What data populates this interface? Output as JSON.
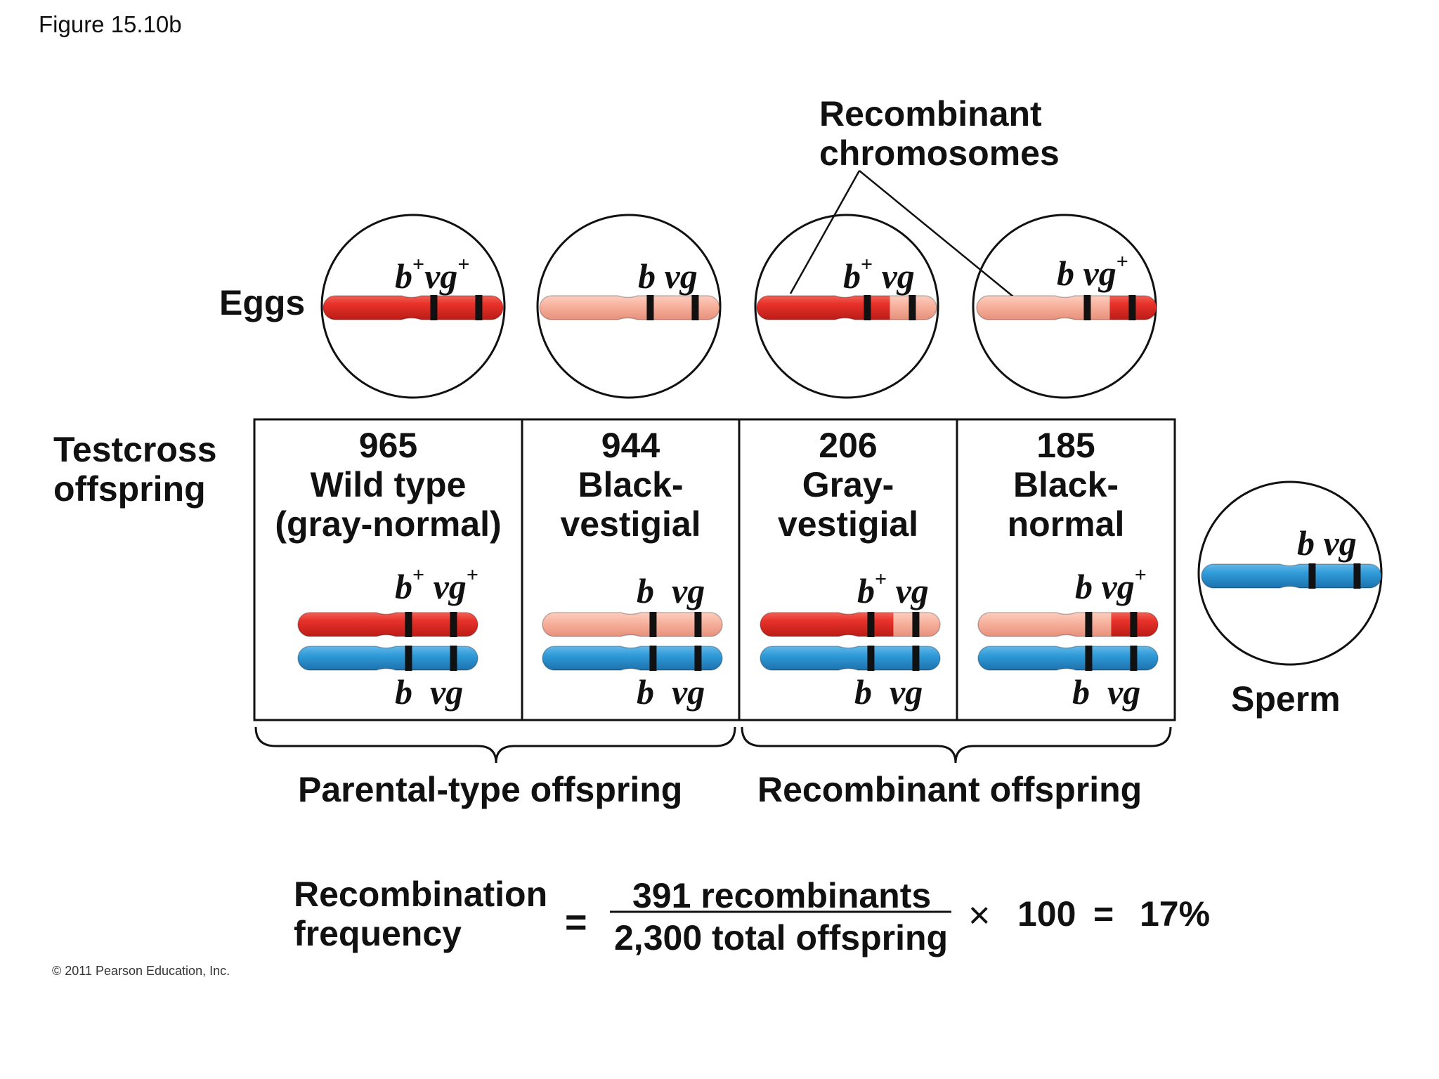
{
  "figure_label": "Figure 15.10b",
  "copyright": "© 2011 Pearson Education, Inc.",
  "recombinant_label": {
    "line1": "Recombinant",
    "line2": "chromosomes"
  },
  "eggs_label": "Eggs",
  "sperm_label": "Sperm",
  "testcross_label": {
    "line1": "Testcross",
    "line2": "offspring"
  },
  "gametes": {
    "eggs": [
      {
        "allele1": "b",
        "sup1": "+",
        "allele2": "vg",
        "sup2": "+",
        "type": "wild-type parental"
      },
      {
        "allele1": "b",
        "sup1": "",
        "allele2": "vg",
        "sup2": "",
        "type": "black-vestigial parental"
      },
      {
        "allele1": "b",
        "sup1": "+",
        "allele2": "vg",
        "sup2": "",
        "type": "recombinant"
      },
      {
        "allele1": "b",
        "sup1": "",
        "allele2": "vg",
        "sup2": "+",
        "type": "recombinant"
      }
    ],
    "sperm": {
      "allele1": "b",
      "allele2": "vg"
    }
  },
  "offspring": [
    {
      "count": "965",
      "line1": "Wild type",
      "line2": "(gray-normal)",
      "top": {
        "a1": "b",
        "s1": "+",
        "a2": "vg",
        "s2": "+"
      },
      "bottom": {
        "a1": "b",
        "a2": "vg"
      }
    },
    {
      "count": "944",
      "line1": "Black-",
      "line2": "vestigial",
      "top": {
        "a1": "b",
        "s1": "",
        "a2": "vg",
        "s2": ""
      },
      "bottom": {
        "a1": "b",
        "a2": "vg"
      }
    },
    {
      "count": "206",
      "line1": "Gray-",
      "line2": "vestigial",
      "top": {
        "a1": "b",
        "s1": "+",
        "a2": "vg",
        "s2": ""
      },
      "bottom": {
        "a1": "b",
        "a2": "vg"
      }
    },
    {
      "count": "185",
      "line1": "Black-",
      "line2": "normal",
      "top": {
        "a1": "b",
        "s1": "",
        "a2": "vg",
        "s2": "+"
      },
      "bottom": {
        "a1": "b",
        "a2": "vg"
      }
    }
  ],
  "group_labels": {
    "parental": "Parental-type offspring",
    "recombinant": "Recombinant offspring"
  },
  "equation": {
    "label_line1": "Recombination",
    "label_line2": "frequency",
    "equals": "=",
    "numerator": "391 recombinants",
    "denominator": "2,300 total offspring",
    "times": "×",
    "multiplier": "100",
    "equals2": "=",
    "result": "17%"
  },
  "colors": {
    "red": "#e8322b",
    "red_dark": "#b81a15",
    "pink": "#f8b4a0",
    "pink_dark": "#e58d78",
    "blue": "#2f9ad8",
    "blue_dark": "#1b6ea8",
    "band": "#111111"
  }
}
